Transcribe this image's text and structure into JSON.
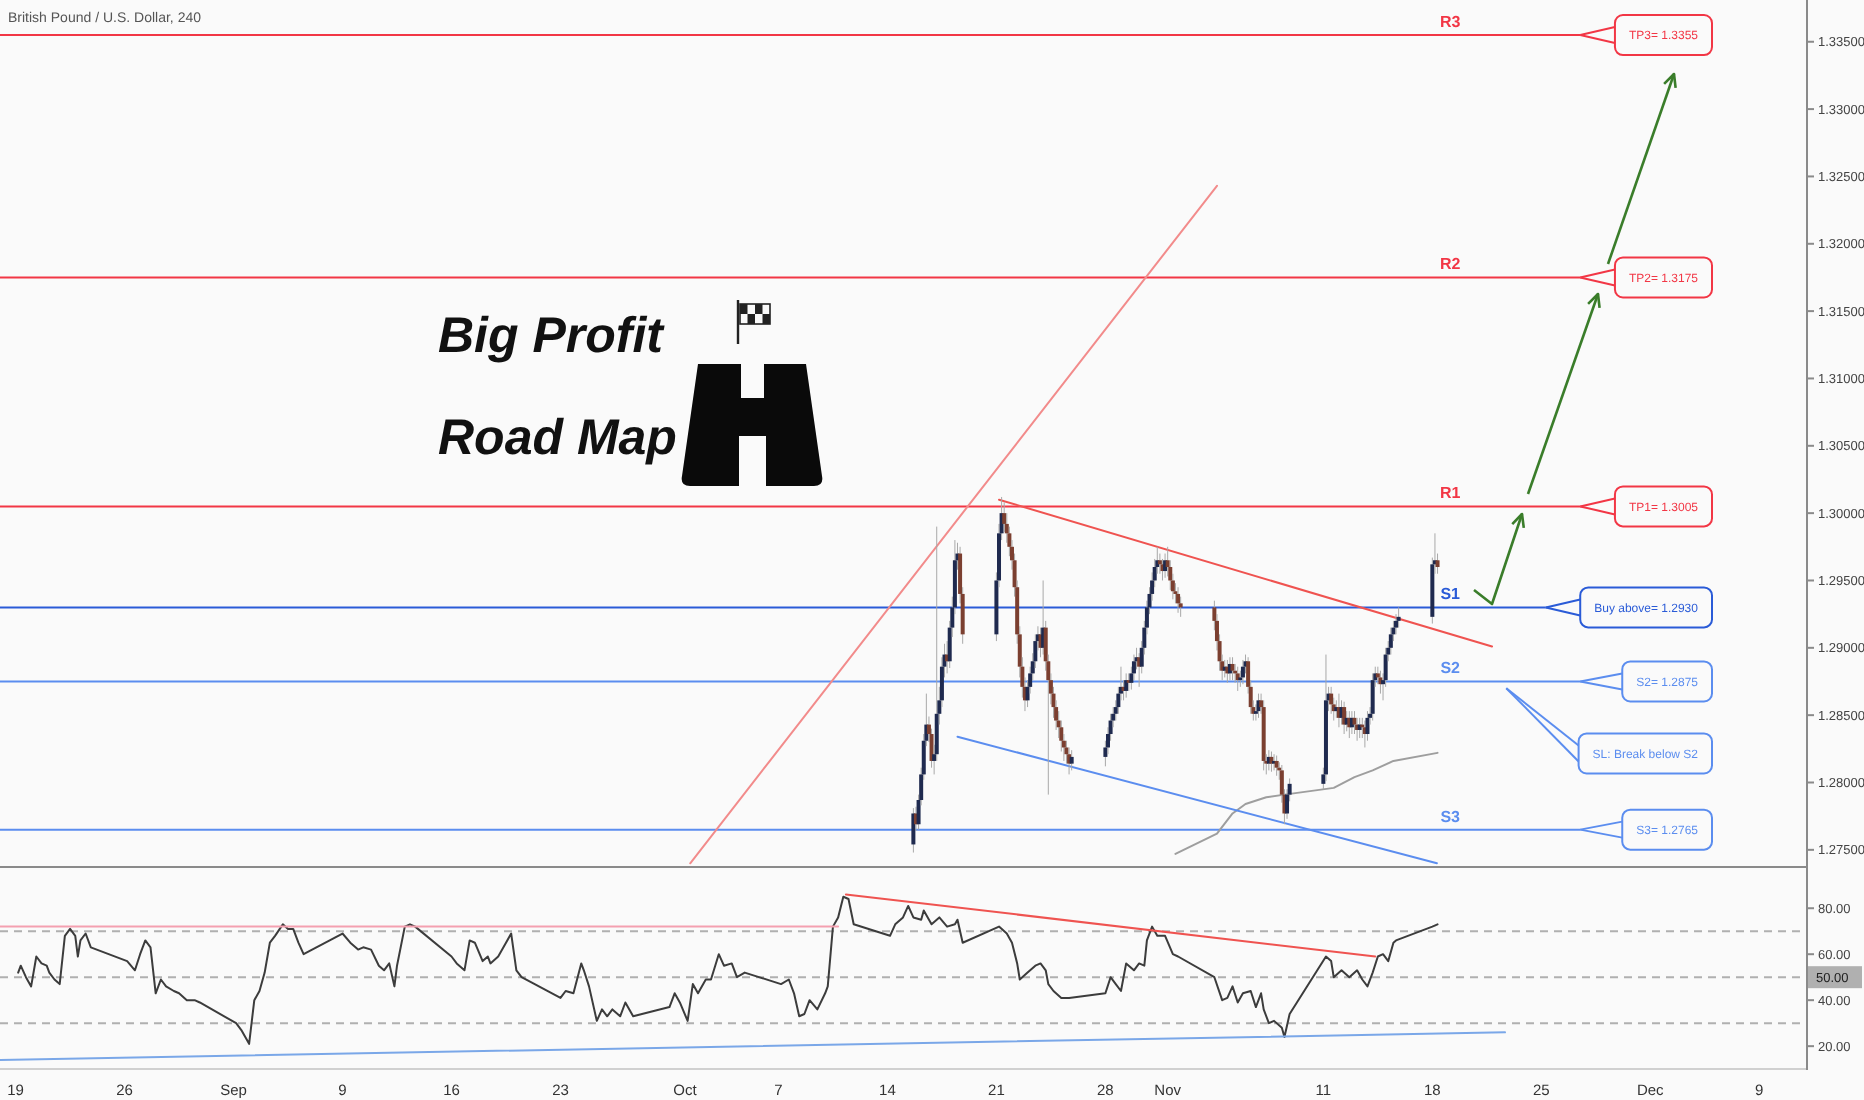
{
  "chart_data": [
    {
      "type": "candlestick",
      "title": "British Pound / U.S. Dollar, 240",
      "x": [
        "--10-15T16:00",
        "--10-15T20:00",
        "--10-16T00:00",
        "--10-16T04:00",
        "--10-16T08:00",
        "--10-16T12:00",
        "--10-16T16:00",
        "--10-16T20:00",
        "--10-17T00:00",
        "--10-17T04:00",
        "--10-17T08:00",
        "--10-17T12:00",
        "--10-17T16:00",
        "--10-17T20:00",
        "--10-18T00:00",
        "--10-18T04:00",
        "--10-18T08:00",
        "--10-18T12:00",
        "--10-18T16:00",
        "--10-18T20:00",
        "--10-21T00:00",
        "--10-21T04:00",
        "--10-21T08:00",
        "--10-21T12:00",
        "--10-21T16:00",
        "--10-21T20:00",
        "--10-22T00:00",
        "--10-22T04:00",
        "--10-22T08:00",
        "--10-22T12:00",
        "--10-22T16:00",
        "--10-22T20:00",
        "--10-23T00:00",
        "--10-23T04:00",
        "--10-23T08:00",
        "--10-23T12:00",
        "--10-23T16:00",
        "--10-23T20:00",
        "--10-24T00:00",
        "--10-24T04:00",
        "--10-24T08:00",
        "--10-24T12:00",
        "--10-24T16:00",
        "--10-24T20:00",
        "--10-25T00:00",
        "--10-25T04:00",
        "--10-25T08:00",
        "--10-25T12:00",
        "--10-25T16:00",
        "--10-25T20:00",
        "--10-28T00:00",
        "--10-28T04:00",
        "--10-28T08:00",
        "--10-28T12:00",
        "--10-28T16:00",
        "--10-28T20:00",
        "--10-29T00:00",
        "--10-29T04:00",
        "--10-29T08:00",
        "--10-29T12:00",
        "--10-29T16:00",
        "--10-29T20:00",
        "--10-30T00:00",
        "--10-30T04:00",
        "--10-30T08:00",
        "--10-30T12:00",
        "--10-30T16:00",
        "--10-30T20:00",
        "--10-31T00:00",
        "--10-31T04:00",
        "--10-31T08:00",
        "--10-31T12:00",
        "--10-31T16:00",
        "--10-31T20:00",
        "--11-01T00:00",
        "--11-01T04:00",
        "--11-01T08:00",
        "--11-01T12:00",
        "--11-01T16:00",
        "--11-01T20:00",
        "--11-04T00:00",
        "--11-04T04:00",
        "--11-04T08:00",
        "--11-04T12:00",
        "--11-04T16:00",
        "--11-04T20:00",
        "--11-05T00:00",
        "--11-05T04:00",
        "--11-05T08:00",
        "--11-05T12:00",
        "--11-05T16:00",
        "--11-05T20:00",
        "--11-06T00:00",
        "--11-06T04:00",
        "--11-06T08:00",
        "--11-06T12:00",
        "--11-06T16:00",
        "--11-06T20:00",
        "--11-07T00:00",
        "--11-07T04:00",
        "--11-07T08:00",
        "--11-07T12:00",
        "--11-07T16:00",
        "--11-07T20:00",
        "--11-08T00:00",
        "--11-08T04:00",
        "--11-08T08:00",
        "--11-08T12:00",
        "--11-08T16:00",
        "--11-08T20:00",
        "--11-11T00:00",
        "--11-11T04:00",
        "--11-11T08:00",
        "--11-11T12:00",
        "--11-11T16:00",
        "--11-11T20:00",
        "--11-12T00:00",
        "--11-12T04:00",
        "--11-12T08:00",
        "--11-12T12:00",
        "--11-12T16:00",
        "--11-12T20:00",
        "--11-13T00:00",
        "--11-13T04:00",
        "--11-13T08:00",
        "--11-13T12:00",
        "--11-13T16:00",
        "--11-13T20:00",
        "--11-14T00:00",
        "--11-14T04:00",
        "--11-14T08:00",
        "--11-14T12:00",
        "--11-14T16:00",
        "--11-14T20:00",
        "--11-15T00:00",
        "--11-15T04:00",
        "--11-15T08:00",
        "--11-15T12:00",
        "--11-15T16:00",
        "--11-15T20:00",
        "--11-18T00:00",
        "--11-18T04:00",
        "--11-18T08:00"
      ],
      "ohlc": [
        [
          1.2754,
          1.2781,
          1.2748,
          1.2777
        ],
        [
          1.2777,
          1.2782,
          1.2764,
          1.2769
        ],
        [
          1.2769,
          1.2791,
          1.2765,
          1.2787
        ],
        [
          1.2787,
          1.2811,
          1.2783,
          1.2806
        ],
        [
          1.2806,
          1.2836,
          1.2802,
          1.2831
        ],
        [
          1.2831,
          1.2866,
          1.2827,
          1.2843
        ],
        [
          1.2843,
          1.2849,
          1.283,
          1.2836
        ],
        [
          1.2836,
          1.284,
          1.2811,
          1.2816
        ],
        [
          1.2816,
          1.2828,
          1.2806,
          1.2821
        ],
        [
          1.2821,
          1.299,
          1.2816,
          1.2851
        ],
        [
          1.2851,
          1.2871,
          1.2843,
          1.2861
        ],
        [
          1.2861,
          1.2893,
          1.2856,
          1.2886
        ],
        [
          1.2886,
          1.2903,
          1.2878,
          1.2895
        ],
        [
          1.2895,
          1.2905,
          1.2881,
          1.289
        ],
        [
          1.289,
          1.292,
          1.2885,
          1.2915
        ],
        [
          1.2915,
          1.2938,
          1.2908,
          1.293
        ],
        [
          1.293,
          1.298,
          1.2925,
          1.2965
        ],
        [
          1.2965,
          1.2978,
          1.2958,
          1.297
        ],
        [
          1.297,
          1.2975,
          1.2933,
          1.294
        ],
        [
          1.294,
          1.2945,
          1.2903,
          1.291
        ],
        [
          1.291,
          1.2956,
          1.2905,
          1.295
        ],
        [
          1.295,
          1.2992,
          1.2945,
          1.2985
        ],
        [
          1.2985,
          1.3012,
          1.298,
          1.3
        ],
        [
          1.3,
          1.3008,
          1.2986,
          1.2992
        ],
        [
          1.2992,
          1.3,
          1.2978,
          1.2985
        ],
        [
          1.2985,
          1.299,
          1.2968,
          1.2975
        ],
        [
          1.2975,
          1.298,
          1.2958,
          1.2965
        ],
        [
          1.2965,
          1.297,
          1.2938,
          1.2945
        ],
        [
          1.2945,
          1.295,
          1.2903,
          1.291
        ],
        [
          1.291,
          1.2916,
          1.2878,
          1.2886
        ],
        [
          1.2886,
          1.2893,
          1.2863,
          1.2871
        ],
        [
          1.2871,
          1.2878,
          1.2853,
          1.2861
        ],
        [
          1.2861,
          1.2876,
          1.2856,
          1.2871
        ],
        [
          1.2871,
          1.2886,
          1.2866,
          1.2881
        ],
        [
          1.2881,
          1.2896,
          1.2876,
          1.289
        ],
        [
          1.289,
          1.291,
          1.2885,
          1.2905
        ],
        [
          1.2905,
          1.2916,
          1.2898,
          1.291
        ],
        [
          1.291,
          1.2915,
          1.2893,
          1.29
        ],
        [
          1.29,
          1.295,
          1.2895,
          1.2915
        ],
        [
          1.2915,
          1.292,
          1.2883,
          1.289
        ],
        [
          1.289,
          1.2895,
          1.2791,
          1.2876
        ],
        [
          1.2876,
          1.2881,
          1.2858,
          1.2866
        ],
        [
          1.2866,
          1.2871,
          1.2848,
          1.2856
        ],
        [
          1.2856,
          1.2861,
          1.2839,
          1.2846
        ],
        [
          1.2846,
          1.2853,
          1.2833,
          1.2841
        ],
        [
          1.2841,
          1.2846,
          1.2823,
          1.2831
        ],
        [
          1.2831,
          1.2836,
          1.2816,
          1.2826
        ],
        [
          1.2826,
          1.2831,
          1.2814,
          1.2821
        ],
        [
          1.2821,
          1.2826,
          1.2806,
          1.2814
        ],
        [
          1.2814,
          1.2824,
          1.2809,
          1.2819
        ],
        [
          1.2819,
          1.2831,
          1.2812,
          1.2826
        ],
        [
          1.2826,
          1.2841,
          1.2821,
          1.2836
        ],
        [
          1.2836,
          1.2851,
          1.2831,
          1.2846
        ],
        [
          1.2846,
          1.2856,
          1.2841,
          1.2851
        ],
        [
          1.2851,
          1.2861,
          1.2846,
          1.2856
        ],
        [
          1.2856,
          1.2871,
          1.2851,
          1.2866
        ],
        [
          1.2866,
          1.2886,
          1.2861,
          1.2871
        ],
        [
          1.2871,
          1.2876,
          1.2861,
          1.2868
        ],
        [
          1.2868,
          1.2881,
          1.2863,
          1.2876
        ],
        [
          1.2876,
          1.2881,
          1.2868,
          1.2874
        ],
        [
          1.2874,
          1.2886,
          1.2869,
          1.2881
        ],
        [
          1.2881,
          1.2895,
          1.2876,
          1.289
        ],
        [
          1.289,
          1.29,
          1.2884,
          1.2893
        ],
        [
          1.2893,
          1.2896,
          1.2871,
          1.2886
        ],
        [
          1.2886,
          1.2905,
          1.2881,
          1.29
        ],
        [
          1.29,
          1.292,
          1.2895,
          1.2915
        ],
        [
          1.2915,
          1.2935,
          1.291,
          1.293
        ],
        [
          1.293,
          1.2945,
          1.2925,
          1.294
        ],
        [
          1.294,
          1.2956,
          1.2935,
          1.295
        ],
        [
          1.295,
          1.2966,
          1.2945,
          1.296
        ],
        [
          1.296,
          1.2975,
          1.2955,
          1.2965
        ],
        [
          1.2965,
          1.297,
          1.2955,
          1.2962
        ],
        [
          1.2962,
          1.2966,
          1.295,
          1.2957
        ],
        [
          1.2957,
          1.297,
          1.2952,
          1.2965
        ],
        [
          1.2965,
          1.2975,
          1.2953,
          1.296
        ],
        [
          1.296,
          1.2965,
          1.2943,
          1.295
        ],
        [
          1.295,
          1.2955,
          1.2936,
          1.2942
        ],
        [
          1.2942,
          1.2948,
          1.2933,
          1.294
        ],
        [
          1.294,
          1.2945,
          1.2926,
          1.2933
        ],
        [
          1.2933,
          1.2938,
          1.2923,
          1.293
        ],
        [
          1.293,
          1.2935,
          1.2913,
          1.292
        ],
        [
          1.292,
          1.2925,
          1.2898,
          1.2905
        ],
        [
          1.2905,
          1.291,
          1.2883,
          1.289
        ],
        [
          1.289,
          1.2895,
          1.2876,
          1.2883
        ],
        [
          1.2883,
          1.2891,
          1.2878,
          1.2886
        ],
        [
          1.2886,
          1.2891,
          1.2874,
          1.2881
        ],
        [
          1.2881,
          1.2893,
          1.2876,
          1.2888
        ],
        [
          1.2888,
          1.2893,
          1.2876,
          1.2883
        ],
        [
          1.2883,
          1.2888,
          1.2874,
          1.2881
        ],
        [
          1.2881,
          1.2886,
          1.2868,
          1.2876
        ],
        [
          1.2876,
          1.2883,
          1.2871,
          1.2878
        ],
        [
          1.2878,
          1.2891,
          1.2873,
          1.2886
        ],
        [
          1.2886,
          1.2895,
          1.2881,
          1.289
        ],
        [
          1.289,
          1.2893,
          1.2866,
          1.2871
        ],
        [
          1.2871,
          1.2876,
          1.2851,
          1.2856
        ],
        [
          1.2856,
          1.2861,
          1.2846,
          1.2851
        ],
        [
          1.2851,
          1.2858,
          1.2846,
          1.2853
        ],
        [
          1.2853,
          1.2866,
          1.2848,
          1.2861
        ],
        [
          1.2861,
          1.2866,
          1.2851,
          1.2856
        ],
        [
          1.2856,
          1.2861,
          1.2809,
          1.2816
        ],
        [
          1.2816,
          1.2821,
          1.2806,
          1.2814
        ],
        [
          1.2814,
          1.2824,
          1.2809,
          1.2819
        ],
        [
          1.2819,
          1.2823,
          1.2808,
          1.2814
        ],
        [
          1.2814,
          1.2821,
          1.2809,
          1.2816
        ],
        [
          1.2816,
          1.282,
          1.2805,
          1.2811
        ],
        [
          1.2811,
          1.2815,
          1.2802,
          1.2809
        ],
        [
          1.2809,
          1.2813,
          1.2785,
          1.2791
        ],
        [
          1.2791,
          1.2795,
          1.2769,
          1.2777
        ],
        [
          1.2777,
          1.2795,
          1.2773,
          1.2791
        ],
        [
          1.2791,
          1.2803,
          1.2786,
          1.2799
        ],
        [
          1.2799,
          1.2811,
          1.2795,
          1.2806
        ],
        [
          1.2806,
          1.2895,
          1.2801,
          1.2861
        ],
        [
          1.2861,
          1.2871,
          1.2853,
          1.2866
        ],
        [
          1.2866,
          1.2871,
          1.2851,
          1.2858
        ],
        [
          1.2858,
          1.2863,
          1.2846,
          1.2853
        ],
        [
          1.2853,
          1.2861,
          1.2848,
          1.2856
        ],
        [
          1.2856,
          1.2866,
          1.2841,
          1.2848
        ],
        [
          1.2848,
          1.2861,
          1.2843,
          1.2856
        ],
        [
          1.2856,
          1.286,
          1.2836,
          1.2843
        ],
        [
          1.2843,
          1.2853,
          1.2838,
          1.2848
        ],
        [
          1.2848,
          1.2853,
          1.2833,
          1.2841
        ],
        [
          1.2841,
          1.2853,
          1.2836,
          1.2848
        ],
        [
          1.2848,
          1.2853,
          1.2836,
          1.2843
        ],
        [
          1.2843,
          1.2848,
          1.2831,
          1.2839
        ],
        [
          1.2839,
          1.2848,
          1.2833,
          1.2843
        ],
        [
          1.2843,
          1.2848,
          1.2833,
          1.2841
        ],
        [
          1.2841,
          1.2846,
          1.2826,
          1.2836
        ],
        [
          1.2836,
          1.2853,
          1.2831,
          1.2848
        ],
        [
          1.2848,
          1.2856,
          1.2843,
          1.2851
        ],
        [
          1.2851,
          1.2881,
          1.2846,
          1.2876
        ],
        [
          1.2876,
          1.2886,
          1.2871,
          1.2881
        ],
        [
          1.2881,
          1.2886,
          1.2873,
          1.2878
        ],
        [
          1.2878,
          1.2883,
          1.2866,
          1.2873
        ],
        [
          1.2873,
          1.2881,
          1.2861,
          1.2876
        ],
        [
          1.2876,
          1.29,
          1.2871,
          1.2895
        ],
        [
          1.2895,
          1.2905,
          1.289,
          1.29
        ],
        [
          1.29,
          1.2915,
          1.2895,
          1.291
        ],
        [
          1.291,
          1.292,
          1.2905,
          1.2915
        ],
        [
          1.2915,
          1.2925,
          1.291,
          1.292
        ],
        [
          1.292,
          1.293,
          1.2915,
          1.2923
        ],
        [
          1.2923,
          1.2967,
          1.2918,
          1.2962
        ],
        [
          1.2962,
          1.2985,
          1.2955,
          1.2965
        ],
        [
          1.2965,
          1.297,
          1.2955,
          1.296
        ]
      ],
      "series": [
        {
          "type": "line",
          "x": [
            "--11-01T12:00",
            "--11-04T04:00",
            "--11-05T04:00",
            "--11-06T00:00",
            "--11-07T08:00",
            "--11-08T12:00",
            "--11-11T16:00",
            "--11-13T00:00",
            "--11-14T04:00",
            "--11-15T12:00",
            "--11-18T08:00"
          ],
          "values": [
            1.2747,
            1.2762,
            1.2777,
            1.2784,
            1.2789,
            1.2791,
            1.2796,
            1.2804,
            1.2809,
            1.2816,
            1.2822
          ],
          "color": "#9e9e9e"
        },
        {
          "type": "line",
          "x": [
            "--10-01T08:00",
            "--11-04T04:00"
          ],
          "values": [
            1.274,
            1.3243
          ],
          "color": "#f28b8b"
        },
        {
          "type": "line",
          "x": [
            "--10-21T04:00",
            "--11-21T20:00"
          ],
          "values": [
            1.301,
            1.2901
          ],
          "color": "#ef5350"
        },
        {
          "type": "line",
          "x": [
            "--10-18T12:00",
            "--11-18T07:00"
          ],
          "values": [
            1.2834,
            1.274
          ],
          "color": "#5b8def"
        }
      ],
      "xlim": [
        "--08-18",
        "--12-12"
      ],
      "ylim": [
        1.2738,
        1.3381
      ],
      "yticks": [
        {
          "value": 1.275,
          "label": "1.27500"
        },
        {
          "value": 1.28,
          "label": "1.28000"
        },
        {
          "value": 1.285,
          "label": "1.28500"
        },
        {
          "value": 1.29,
          "label": "1.29000"
        },
        {
          "value": 1.295,
          "label": "1.29500"
        },
        {
          "value": 1.3,
          "label": "1.30000"
        },
        {
          "value": 1.305,
          "label": "1.30500"
        },
        {
          "value": 1.31,
          "label": "1.31000"
        },
        {
          "value": 1.315,
          "label": "1.31500"
        },
        {
          "value": 1.32,
          "label": "1.32000"
        },
        {
          "value": 1.325,
          "label": "1.32500"
        },
        {
          "value": 1.33,
          "label": "1.33000"
        },
        {
          "value": 1.335,
          "label": "1.33500"
        }
      ],
      "ref_lines": [
        {
          "axis": "y",
          "value": 1.3355,
          "label": "R3",
          "color": "#f23645"
        },
        {
          "axis": "y",
          "value": 1.3175,
          "label": "R2",
          "color": "#f23645"
        },
        {
          "axis": "y",
          "value": 1.3005,
          "label": "R1",
          "color": "#f23645"
        },
        {
          "axis": "y",
          "value": 1.293,
          "label": "S1",
          "color": "#2a5bd7"
        },
        {
          "axis": "y",
          "value": 1.2875,
          "label": "S2",
          "color": "#5b8def"
        },
        {
          "axis": "y",
          "value": 1.2765,
          "label": "S3",
          "color": "#5b8def"
        }
      ],
      "annotations": [
        "Big Profit",
        "Road Map",
        {
          "text": "TP3= 1.3355",
          "x": "--11-27T12:00",
          "y": 1.3355
        },
        {
          "text": "TP2= 1.3175",
          "x": "--11-27T12:00",
          "y": 1.3175
        },
        {
          "text": "TP1= 1.3005",
          "x": "--11-27T12:00",
          "y": 1.3005
        },
        {
          "text": "Buy above= 1.2930",
          "x": "--11-25T07:00",
          "y": 1.293
        },
        {
          "text": "S2= 1.2875",
          "x": "--11-27T12:00",
          "y": 1.2875
        },
        {
          "text": "SL: Break below S2",
          "x": "--11-22T18:00",
          "y": 1.287
        },
        {
          "text": "S3= 1.2765",
          "x": "--11-27T12:00",
          "y": 1.2765
        }
      ],
      "tick_labels": "y"
    },
    {
      "type": "line",
      "series": [
        {
          "x": [
            "--08-19T04:00",
            "--08-19T08:00",
            "--08-19T16:00",
            "--08-20T00:00",
            "--08-20T08:00",
            "--08-20T16:00",
            "--08-21T00:00",
            "--08-21T04:00",
            "--08-21T12:00",
            "--08-21T20:00",
            "--08-22T04:00",
            "--08-22T12:00",
            "--08-22T20:00",
            "--08-23T00:00",
            "--08-23T04:00",
            "--08-23T12:00",
            "--08-23T20:00",
            "--08-26T04:00",
            "--08-26T16:00",
            "--08-27T00:00",
            "--08-27T08:00",
            "--08-27T16:00",
            "--08-28T00:00",
            "--08-28T08:00",
            "--08-28T16:00",
            "--08-29T04:00",
            "--08-29T12:00",
            "--08-30T00:00",
            "--08-30T12:00",
            "--08-30T20:00",
            "--09-02T04:00",
            "--09-02T12:00",
            "--09-03T00:00",
            "--09-03T08:00",
            "--09-03T16:00",
            "--09-04T00:00",
            "--09-04T08:00",
            "--09-04T16:00",
            "--09-05T04:00",
            "--09-05T12:00",
            "--09-05T20:00",
            "--09-06T04:00",
            "--09-06T12:00",
            "--09-09T00:00",
            "--09-09T12:00",
            "--09-10T00:00",
            "--09-10T08:00",
            "--09-10T20:00",
            "--09-11T08:00",
            "--09-11T16:00",
            "--09-12T00:00",
            "--09-12T08:00",
            "--09-12T12:00",
            "--09-13T00:00",
            "--09-13T08:00",
            "--09-13T16:00",
            "--09-16T00:00",
            "--09-16T08:00",
            "--09-16T20:00",
            "--09-17T04:00",
            "--09-17T12:00",
            "--09-18T00:00",
            "--09-18T08:00",
            "--09-18T12:00",
            "--09-19T00:00",
            "--09-19T12:00",
            "--09-19T20:00",
            "--09-20T04:00",
            "--09-20T12:00",
            "--09-23T00:00",
            "--09-23T08:00",
            "--09-23T20:00",
            "--09-24T08:00",
            "--09-24T12:00",
            "--09-24T20:00",
            "--09-25T08:00",
            "--09-25T16:00",
            "--09-26T00:00",
            "--09-26T08:00",
            "--09-26T20:00",
            "--09-27T04:00",
            "--09-27T16:00",
            "--09-30T00:00",
            "--09-30T08:00",
            "--09-30T16:00",
            "--10-01T04:00",
            "--10-01T12:00",
            "--10-01T20:00",
            "--10-02T08:00",
            "--10-02T16:00",
            "--10-03T04:00",
            "--10-03T12:00",
            "--10-04T00:00",
            "--10-04T08:00",
            "--10-04T20:00",
            "--10-07T04:00",
            "--10-07T16:00",
            "--10-08T00:00",
            "--10-08T08:00",
            "--10-08T16:00",
            "--10-09T00:00",
            "--10-09T12:00",
            "--10-10T00:00",
            "--10-10T04:00",
            "--10-10T12:00",
            "--10-10T20:00",
            "--10-11T04:00",
            "--10-11T12:00",
            "--10-11T20:00",
            "--10-14T04:00",
            "--10-14T12:00",
            "--10-15T00:00",
            "--10-15T08:00",
            "--10-15T16:00",
            "--10-16T04:00",
            "--10-16T08:00",
            "--10-16T20:00",
            "--10-17T08:00",
            "--10-17T20:00",
            "--10-18T08:00",
            "--10-18T12:00",
            "--10-18T20:00",
            "--10-21T04:00",
            "--10-21T16:00",
            "--10-22T00:00",
            "--10-22T08:00",
            "--10-22T12:00",
            "--10-23T00:00",
            "--10-23T12:00",
            "--10-23T20:00",
            "--10-24T04:00",
            "--10-24T08:00",
            "--10-24T16:00",
            "--10-25T04:00",
            "--10-25T16:00",
            "--10-28T00:00",
            "--10-28T08:00",
            "--10-28T16:00",
            "--10-29T00:00",
            "--10-29T08:00",
            "--10-29T20:00",
            "--10-30T04:00",
            "--10-30T12:00",
            "--10-30T16:00",
            "--10-31T00:00",
            "--10-31T08:00",
            "--10-31T20:00",
            "--11-01T08:00",
            "--11-01T16:00",
            "--11-04T00:00",
            "--11-04T12:00",
            "--11-04T20:00",
            "--11-05T04:00",
            "--11-05T12:00",
            "--11-05T20:00",
            "--11-06T08:00",
            "--11-06T16:00",
            "--11-07T00:00",
            "--11-07T04:00",
            "--11-07T12:00",
            "--11-07T20:00",
            "--11-08T08:00",
            "--11-08T12:00",
            "--11-08T20:00",
            "--11-11T04:00",
            "--11-11T12:00",
            "--11-11T16:00",
            "--11-12T04:00",
            "--11-12T16:00",
            "--11-13T04:00",
            "--11-13T12:00",
            "--11-13T20:00",
            "--11-14T04:00",
            "--11-14T12:00",
            "--11-14T20:00",
            "--11-15T04:00",
            "--11-15T12:00",
            "--11-15T16:00",
            "--11-18T00:00",
            "--11-18T08:00"
          ],
          "values": [
            52,
            55,
            50,
            46,
            59,
            56,
            55,
            52,
            49,
            47,
            68,
            71,
            68,
            59,
            66,
            69,
            63,
            57,
            53,
            60,
            66,
            63,
            43,
            49,
            46,
            44,
            43,
            40,
            40,
            39,
            30,
            27,
            21,
            40,
            44,
            52,
            65,
            68,
            73,
            71,
            71,
            65,
            60,
            69,
            65,
            62,
            63,
            62,
            55,
            53,
            56,
            46,
            55,
            72,
            73,
            72,
            59,
            56,
            53,
            66,
            65,
            57,
            59,
            56,
            59,
            65,
            69,
            53,
            50,
            41,
            44,
            43,
            56,
            53,
            46,
            31,
            36,
            33,
            36,
            33,
            39,
            33,
            37,
            43,
            39,
            31,
            47,
            43,
            49,
            49,
            60,
            55,
            56,
            50,
            52,
            47,
            49,
            43,
            33,
            34,
            40,
            36,
            43,
            46,
            72,
            76,
            85,
            84,
            73,
            68,
            73,
            76,
            81,
            76,
            75,
            79,
            73,
            76,
            72,
            73,
            75,
            65,
            72,
            69,
            65,
            56,
            49,
            52,
            55,
            56,
            53,
            47,
            44,
            41,
            41,
            43,
            50,
            47,
            44,
            56,
            53,
            56,
            55,
            66,
            72,
            68,
            68,
            60,
            59,
            50,
            40,
            41,
            46,
            39,
            43,
            44,
            37,
            43,
            36,
            30,
            31,
            28,
            24,
            34,
            59,
            57,
            50,
            53,
            50,
            53,
            49,
            46,
            52,
            59,
            60,
            57,
            65,
            66,
            72,
            73
          ],
          "color": "#3c3c3c"
        },
        {
          "x": [
            "--08-18",
            "--10-10T20:00"
          ],
          "values": [
            72,
            72
          ],
          "color": "#f4a0b0"
        },
        {
          "x": [
            "--10-11T08:00",
            "--11-14T08:00"
          ],
          "values": [
            86,
            59
          ],
          "color": "#ef5350"
        },
        {
          "x": [
            "--08-18",
            "--11-22T16:00"
          ],
          "values": [
            14,
            26
          ],
          "color": "#7aa7e8"
        }
      ],
      "xlim": [
        "--08-18",
        "--12-12"
      ],
      "ylim": [
        10.5,
        97.5
      ],
      "xticks": [
        {
          "value": "--08-19",
          "label": "19"
        },
        {
          "value": "--08-26",
          "label": "26"
        },
        {
          "value": "--09-02",
          "label": "Sep"
        },
        {
          "value": "--09-09",
          "label": "9"
        },
        {
          "value": "--09-16",
          "label": "16"
        },
        {
          "value": "--09-23",
          "label": "23"
        },
        {
          "value": "--10-01",
          "label": "Oct"
        },
        {
          "value": "--10-07",
          "label": "7"
        },
        {
          "value": "--10-14",
          "label": "14"
        },
        {
          "value": "--10-21",
          "label": "21"
        },
        {
          "value": "--10-28",
          "label": "28"
        },
        {
          "value": "--11-01",
          "label": "Nov"
        },
        {
          "value": "--11-11",
          "label": "11"
        },
        {
          "value": "--11-18",
          "label": "18"
        },
        {
          "value": "--11-25",
          "label": "25"
        },
        {
          "value": "--12-02",
          "label": "Dec"
        },
        {
          "value": "--12-09",
          "label": "9"
        }
      ],
      "yticks": [
        {
          "value": 80,
          "label": "80.00"
        },
        {
          "value": 60,
          "label": "60.00"
        },
        {
          "value": 40,
          "label": "40.00"
        },
        {
          "value": 20,
          "label": "20.00"
        }
      ],
      "ref_lines": [
        {
          "axis": "y",
          "value": 70,
          "color": "#b0b0b0",
          "line_style": "dashed"
        },
        {
          "axis": "y",
          "value": 50,
          "label": "50.00",
          "color": "#b0b0b0",
          "line_style": "dashed"
        },
        {
          "axis": "y",
          "value": 30,
          "color": "#b0b0b0",
          "line_style": "dashed"
        }
      ]
    }
  ]
}
